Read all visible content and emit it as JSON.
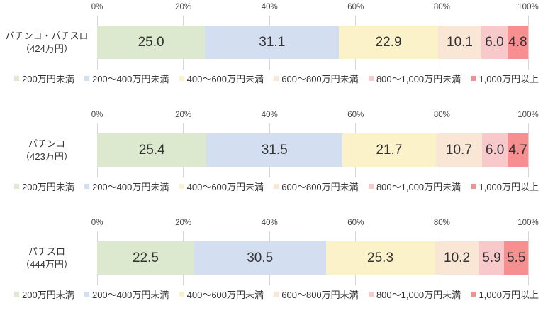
{
  "axis": {
    "ticks": [
      "0%",
      "20%",
      "40%",
      "60%",
      "80%",
      "100%"
    ]
  },
  "legend": {
    "items": [
      {
        "label": "200万円未満",
        "color": "#dde9cf"
      },
      {
        "label": "200～400万円未満",
        "color": "#d3def0"
      },
      {
        "label": "400～600万円未満",
        "color": "#fcf2c9"
      },
      {
        "label": "600～800万円未満",
        "color": "#fae6d5"
      },
      {
        "label": "800～1,000万円未満",
        "color": "#f8c9ca"
      },
      {
        "label": "1,000万円以上",
        "color": "#f78f90"
      }
    ]
  },
  "chart_data": [
    {
      "type": "bar",
      "orientation": "horizontal",
      "stacked": true,
      "title": "パチンコ・パチスロ（424万円）",
      "category_line1": "パチンコ・パチスロ",
      "category_line2": "（424万円）",
      "segment_labels": [
        "200万円未満",
        "200～400万円未満",
        "400～600万円未満",
        "600～800万円未満",
        "800～1,000万円未満",
        "1,000万円以上"
      ],
      "values": [
        25.0,
        31.1,
        22.9,
        10.1,
        6.0,
        4.8
      ],
      "value_labels": [
        "25.0",
        "31.1",
        "22.9",
        "10.1",
        "6.0",
        "4.8"
      ],
      "xlim": [
        0,
        100
      ],
      "x_ticks": [
        "0%",
        "20%",
        "40%",
        "60%",
        "80%",
        "100%"
      ],
      "legend_position": "bottom",
      "grid": true
    },
    {
      "type": "bar",
      "orientation": "horizontal",
      "stacked": true,
      "title": "パチンコ（423万円）",
      "category_line1": "パチンコ",
      "category_line2": "（423万円）",
      "segment_labels": [
        "200万円未満",
        "200～400万円未満",
        "400～600万円未満",
        "600～800万円未満",
        "800～1,000万円未満",
        "1,000万円以上"
      ],
      "values": [
        25.4,
        31.5,
        21.7,
        10.7,
        6.0,
        4.7
      ],
      "value_labels": [
        "25.4",
        "31.5",
        "21.7",
        "10.7",
        "6.0",
        "4.7"
      ],
      "xlim": [
        0,
        100
      ],
      "x_ticks": [
        "0%",
        "20%",
        "40%",
        "60%",
        "80%",
        "100%"
      ],
      "legend_position": "bottom",
      "grid": true
    },
    {
      "type": "bar",
      "orientation": "horizontal",
      "stacked": true,
      "title": "パチスロ（444万円）",
      "category_line1": "パチスロ",
      "category_line2": "（444万円）",
      "segment_labels": [
        "200万円未満",
        "200～400万円未満",
        "400～600万円未満",
        "600～800万円未満",
        "800～1,000万円未満",
        "1,000万円以上"
      ],
      "values": [
        22.5,
        30.5,
        25.3,
        10.2,
        5.9,
        5.5
      ],
      "value_labels": [
        "22.5",
        "30.5",
        "25.3",
        "10.2",
        "5.9",
        "5.5"
      ],
      "xlim": [
        0,
        100
      ],
      "x_ticks": [
        "0%",
        "20%",
        "40%",
        "60%",
        "80%",
        "100%"
      ],
      "legend_position": "bottom",
      "grid": true
    }
  ]
}
